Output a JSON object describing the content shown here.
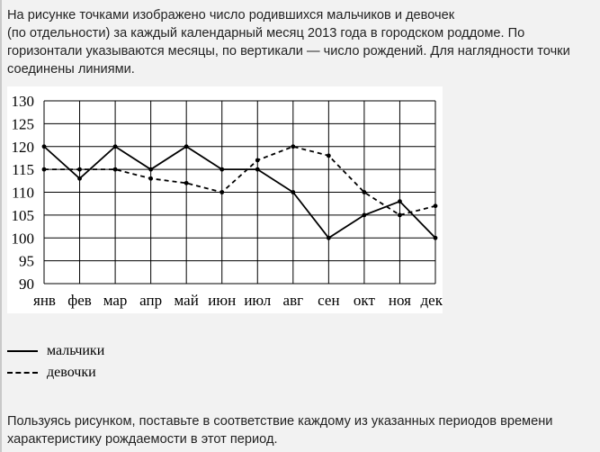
{
  "intro": {
    "lines": [
      "На рисунке точками изображено число родившихся мальчиков и девочек",
      "(по отдельности) за каждый календарный месяц 2013 года в городском роддоме. По",
      "горизонтали указываются месяцы, по вертикали — число рождений. Для наглядности точки",
      "соединены линиями."
    ]
  },
  "legend": {
    "boys_label": "мальчики",
    "girls_label": "девочки"
  },
  "outro": {
    "lines": [
      "Пользуясь рисунком, поставьте в соответствие каждому из указанных периодов времени",
      "характеристику рождаемости в этот период."
    ]
  },
  "chart_data": {
    "type": "line",
    "categories": [
      "янв",
      "фев",
      "мар",
      "апр",
      "май",
      "июн",
      "июл",
      "авг",
      "сен",
      "окт",
      "ноя",
      "дек"
    ],
    "series": [
      {
        "name": "мальчики",
        "style": "solid",
        "values": [
          120,
          113,
          120,
          115,
          120,
          115,
          115,
          110,
          100,
          105,
          108,
          100
        ]
      },
      {
        "name": "девочки",
        "style": "dashed",
        "values": [
          115,
          115,
          115,
          113,
          112,
          110,
          117,
          120,
          118,
          110,
          105,
          107
        ]
      }
    ],
    "title": "",
    "xlabel": "",
    "ylabel": "",
    "ylim": [
      90,
      130
    ],
    "yticks": [
      90,
      95,
      100,
      105,
      110,
      115,
      120,
      125,
      130
    ],
    "grid": true,
    "colors": {
      "lines": "#000000",
      "grid": "#000000",
      "background": "#ffffff"
    }
  }
}
